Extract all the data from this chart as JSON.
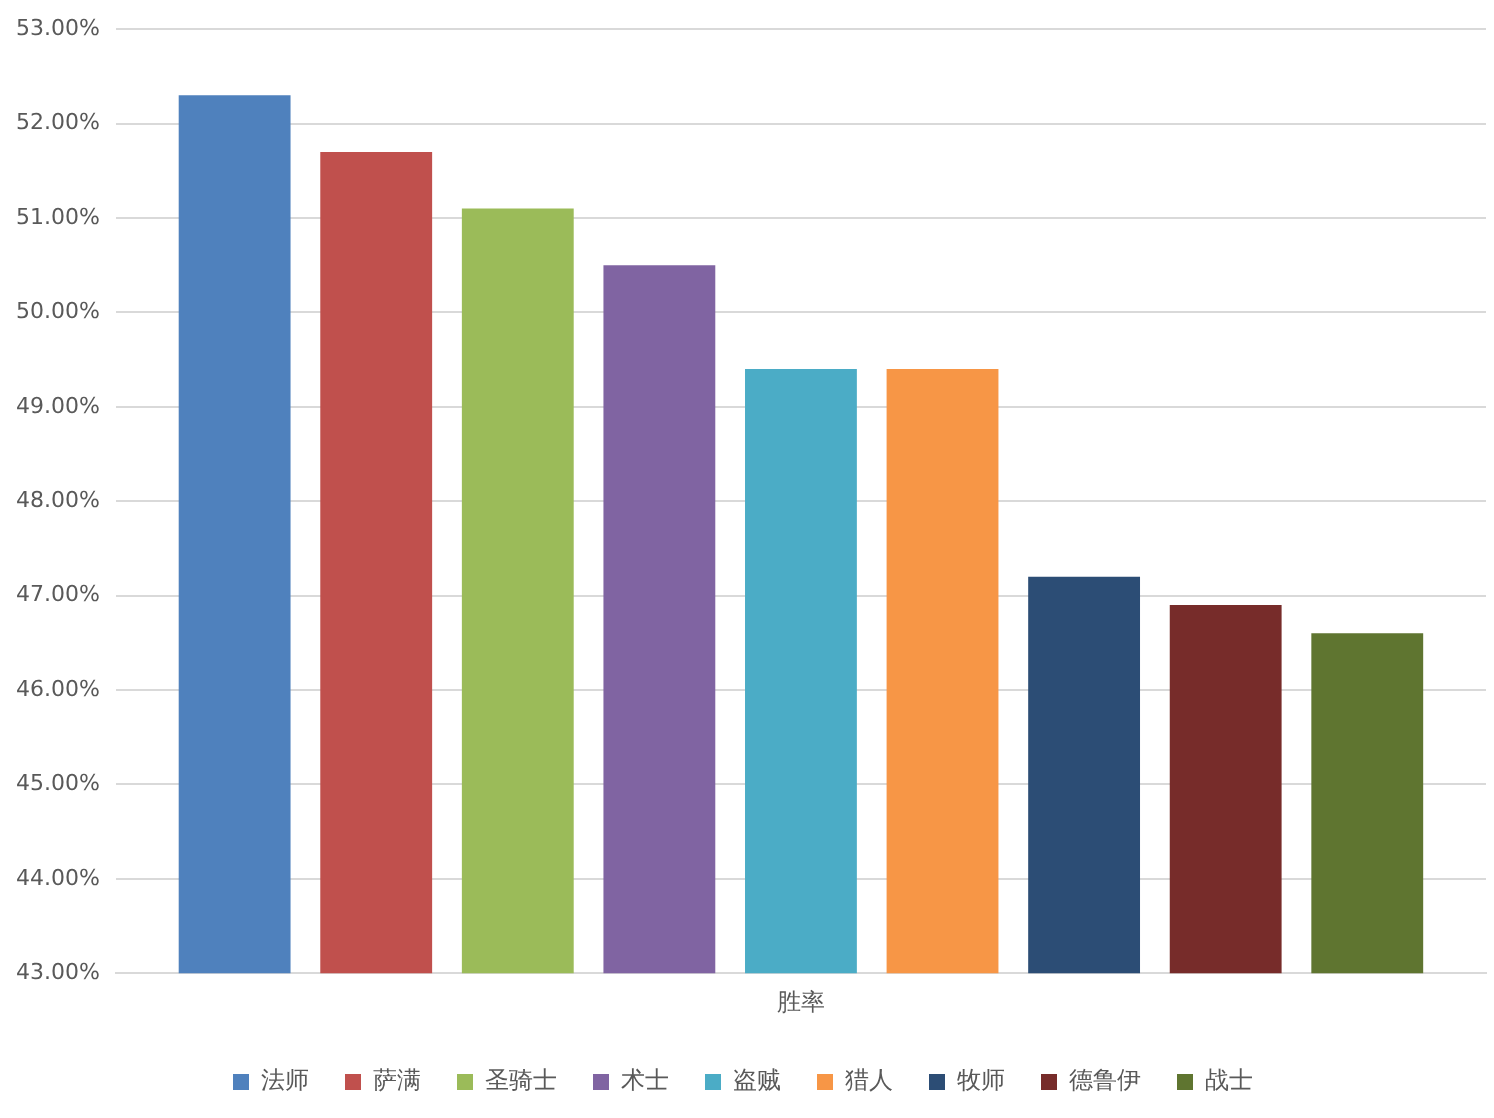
{
  "chart_data": {
    "type": "bar",
    "categories": [
      "胜率"
    ],
    "series": [
      {
        "name": "法师",
        "color": "#4f81bd",
        "values": [
          52.3
        ]
      },
      {
        "name": "萨满",
        "color": "#c0504d",
        "values": [
          51.7
        ]
      },
      {
        "name": "圣骑士",
        "color": "#9bbb59",
        "values": [
          51.1
        ]
      },
      {
        "name": "术士",
        "color": "#8064a2",
        "values": [
          50.5
        ]
      },
      {
        "name": "盗贼",
        "color": "#4bacc6",
        "values": [
          49.4
        ]
      },
      {
        "name": "猎人",
        "color": "#f79646",
        "values": [
          49.4
        ]
      },
      {
        "name": "牧师",
        "color": "#2c4d75",
        "values": [
          47.2
        ]
      },
      {
        "name": "德鲁伊",
        "color": "#772c2a",
        "values": [
          46.9
        ]
      },
      {
        "name": "战士",
        "color": "#5f7530",
        "values": [
          46.6
        ]
      }
    ],
    "ylim": [
      43,
      53
    ],
    "yticks": [
      {
        "value": 43,
        "label": "43.00%"
      },
      {
        "value": 44,
        "label": "44.00%"
      },
      {
        "value": 45,
        "label": "45.00%"
      },
      {
        "value": 46,
        "label": "46.00%"
      },
      {
        "value": 47,
        "label": "47.00%"
      },
      {
        "value": 48,
        "label": "48.00%"
      },
      {
        "value": 49,
        "label": "49.00%"
      },
      {
        "value": 50,
        "label": "50.00%"
      },
      {
        "value": 51,
        "label": "51.00%"
      },
      {
        "value": 52,
        "label": "52.00%"
      },
      {
        "value": 53,
        "label": "53.00%"
      }
    ],
    "grid": "y",
    "legend": "bottom"
  }
}
